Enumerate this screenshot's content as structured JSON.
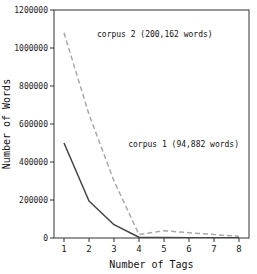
{
  "chart_data": {
    "type": "line",
    "xlabel": "Number of Tags",
    "ylabel": "Number of Words",
    "x": [
      1,
      2,
      3,
      4,
      5,
      6,
      7,
      8
    ],
    "series": [
      {
        "name": "corpus 2 (200,162 words)",
        "color": "#aaaaaa",
        "line_style": "dashed",
        "values": [
          1080000,
          650000,
          300000,
          18000,
          38000,
          28000,
          18000,
          9000
        ]
      },
      {
        "name": "corpus 1 (94,882 words)",
        "color": "#444444",
        "line_style": "solid",
        "values": [
          500000,
          195000,
          70000,
          4000,
          2500,
          1800,
          1200,
          800
        ]
      }
    ],
    "xlim": [
      0.6,
      8.4
    ],
    "ylim": [
      0,
      1200000
    ],
    "xticks": [
      1,
      2,
      3,
      4,
      5,
      6,
      7,
      8
    ],
    "yticks": [
      0,
      200000,
      400000,
      600000,
      800000,
      1000000,
      1200000
    ],
    "grid": false
  }
}
